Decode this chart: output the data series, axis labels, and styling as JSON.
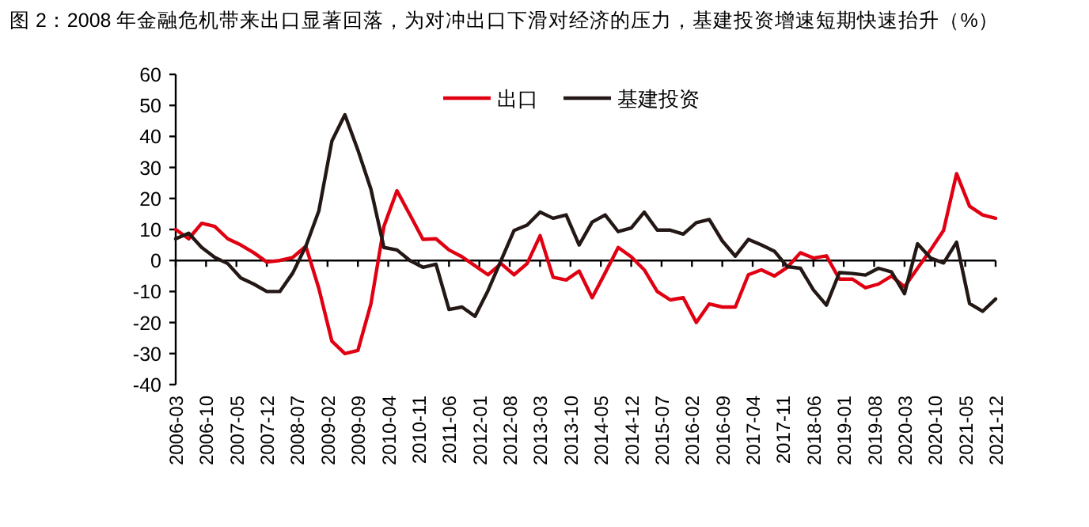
{
  "chart_data": {
    "type": "line",
    "title": "图 2：2008 年金融危机带来出口显著回落，为对冲出口下滑对经济的压力，基建投资增速短期快速抬升（%）",
    "x": [
      "2006-03",
      "2006-06",
      "2006-09",
      "2006-12",
      "2007-03",
      "2007-06",
      "2007-09",
      "2007-12",
      "2008-03",
      "2008-06",
      "2008-09",
      "2008-12",
      "2009-03",
      "2009-06",
      "2009-09",
      "2009-12",
      "2010-03",
      "2010-06",
      "2010-09",
      "2010-12",
      "2011-03",
      "2011-06",
      "2011-09",
      "2011-12",
      "2012-03",
      "2012-06",
      "2012-09",
      "2012-12",
      "2013-03",
      "2013-06",
      "2013-09",
      "2013-12",
      "2014-03",
      "2014-06",
      "2014-09",
      "2014-12",
      "2015-03",
      "2015-06",
      "2015-09",
      "2015-12",
      "2016-03",
      "2016-06",
      "2016-09",
      "2016-12",
      "2017-03",
      "2017-06",
      "2017-09",
      "2017-12",
      "2018-03",
      "2018-06",
      "2018-09",
      "2018-12",
      "2019-03",
      "2019-06",
      "2019-09",
      "2019-12",
      "2020-03",
      "2020-06",
      "2020-09",
      "2020-12",
      "2021-03",
      "2021-06",
      "2021-09",
      "2021-12"
    ],
    "series": [
      {
        "name": "出口",
        "color": "#e00012",
        "values": [
          10,
          7,
          12,
          11,
          7,
          5,
          2.5,
          -0.5,
          0,
          1,
          4.6,
          -9,
          -26,
          -30,
          -29,
          -14,
          11,
          22.5,
          14.7,
          6.8,
          7,
          3.4,
          1.2,
          -1.7,
          -4.6,
          -1,
          -4.6,
          -1,
          8,
          -5.4,
          -6.3,
          -3.4,
          -12,
          -4,
          4.2,
          1.2,
          -3,
          -10,
          -12.7,
          -12,
          -20,
          -14,
          -15,
          -15,
          -4.6,
          -3,
          -5,
          -2.2,
          2.5,
          0.8,
          1.5,
          -6,
          -6,
          -8.8,
          -7.6,
          -5,
          -8.5,
          -2.5,
          3.4,
          9.7,
          28,
          17.5,
          14.7,
          13.6
        ]
      },
      {
        "name": "基建投资",
        "color": "#231815",
        "values": [
          7,
          8.8,
          4.2,
          1,
          -1,
          -5.6,
          -7.6,
          -10,
          -10,
          -4,
          4.6,
          16,
          38.5,
          47,
          35.6,
          23,
          4.2,
          3.4,
          0,
          -2.2,
          -1.2,
          -15.8,
          -15,
          -18,
          -9.7,
          0,
          9.7,
          11.4,
          15.6,
          13.6,
          14.7,
          5,
          12.4,
          14.7,
          9.3,
          10.5,
          15.6,
          9.8,
          9.8,
          8.5,
          12.2,
          13.2,
          6.3,
          1.4,
          6.8,
          5,
          3,
          -2,
          -2.5,
          -9.5,
          -14.4,
          -3.9,
          -4.2,
          -4.7,
          -2.5,
          -3.7,
          -10.7,
          5.4,
          0.8,
          -0.8,
          5.9,
          -13.9,
          -16.4,
          -12.4
        ]
      }
    ],
    "xlim": [
      "2006-03",
      "2021-12"
    ],
    "xticks": [
      "2006-03",
      "2006-10",
      "2007-05",
      "2007-12",
      "2008-07",
      "2009-02",
      "2009-09",
      "2010-04",
      "2010-11",
      "2011-06",
      "2012-01",
      "2012-08",
      "2013-03",
      "2013-10",
      "2014-05",
      "2014-12",
      "2015-07",
      "2016-02",
      "2016-09",
      "2017-04",
      "2017-11",
      "2018-06",
      "2019-01",
      "2019-08",
      "2020-03",
      "2020-10",
      "2021-05",
      "2021-12"
    ],
    "ylim": [
      -40,
      60
    ],
    "yticks": [
      -40,
      -30,
      -20,
      -10,
      0,
      10,
      20,
      30,
      40,
      50,
      60
    ],
    "legend": "top"
  }
}
